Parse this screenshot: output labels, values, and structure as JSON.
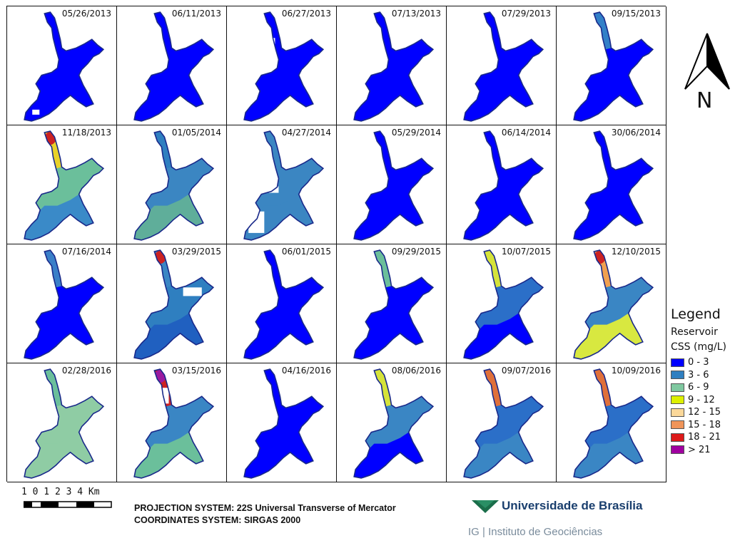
{
  "panels": [
    {
      "date": "05/26/2013",
      "colors": [
        "#0000ff",
        "#0000ff",
        "#0000ff"
      ],
      "holes": [
        [
          35,
          144,
          10,
          7
        ]
      ]
    },
    {
      "date": "06/11/2013",
      "colors": [
        "#0000ff",
        "#0000ff",
        "#0000ff"
      ],
      "holes": [
        [
          124,
          82,
          14,
          9
        ]
      ]
    },
    {
      "date": "06/27/2013",
      "colors": [
        "#0000ff",
        "#0000ff",
        "#0000ff"
      ],
      "holes": [
        [
          56,
          44,
          11,
          14
        ]
      ]
    },
    {
      "date": "07/13/2013",
      "colors": [
        "#0000ff",
        "#0000ff",
        "#0000ff"
      ],
      "holes": []
    },
    {
      "date": "07/29/2013",
      "colors": [
        "#0000ff",
        "#0000ff",
        "#0000ff"
      ],
      "holes": []
    },
    {
      "date": "09/15/2013",
      "colors": [
        "#3280c8",
        "#0000ff",
        "#0000ff"
      ],
      "holes": []
    },
    {
      "date": "11/18/2013",
      "colors": [
        "#e8d22a",
        "#6bbf9b",
        "#3a8ac8"
      ],
      "accent": "#cc2222",
      "holes": []
    },
    {
      "date": "01/05/2014",
      "colors": [
        "#2f7fc0",
        "#3b86c2",
        "#5fae9a"
      ],
      "holes": []
    },
    {
      "date": "04/27/2014",
      "colors": [
        "#3b86c2",
        "#3b86c2",
        "#3b86c2"
      ],
      "holes": [
        [
          58,
          85,
          14,
          9
        ],
        [
          30,
          120,
          22,
          30
        ]
      ]
    },
    {
      "date": "05/29/2014",
      "colors": [
        "#0000ff",
        "#0000ff",
        "#0000ff"
      ],
      "holes": []
    },
    {
      "date": "06/14/2014",
      "colors": [
        "#0000ff",
        "#0000ff",
        "#0000ff"
      ],
      "holes": []
    },
    {
      "date": "30/06/2014",
      "colors": [
        "#0000ff",
        "#0000ff",
        "#0000ff"
      ],
      "holes": []
    },
    {
      "date": "07/16/2014",
      "colors": [
        "#3a7fc8",
        "#0000ff",
        "#0000ff"
      ],
      "holes": []
    },
    {
      "date": "03/29/2015",
      "colors": [
        "#3a86c4",
        "#2f7fc0",
        "#2060c0"
      ],
      "accent": "#cc2222",
      "holes": [
        [
          92,
          60,
          26,
          12
        ]
      ]
    },
    {
      "date": "06/01/2015",
      "colors": [
        "#0000ff",
        "#0000ff",
        "#0000ff"
      ],
      "holes": []
    },
    {
      "date": "09/29/2015",
      "colors": [
        "#6bbf9b",
        "#0000ff",
        "#0000ff"
      ],
      "holes": []
    },
    {
      "date": "10/07/2015",
      "colors": [
        "#d5e33a",
        "#2b6fc8",
        "#0000ff"
      ],
      "holes": []
    },
    {
      "date": "12/10/2015",
      "colors": [
        "#f0a050",
        "#3a86c4",
        "#d8e840"
      ],
      "accent": "#cc2222",
      "holes": []
    },
    {
      "date": "02/28/2016",
      "colors": [
        "#6bbf9b",
        "#8fcca4",
        "#8fcca4"
      ],
      "holes": []
    },
    {
      "date": "03/15/2016",
      "colors": [
        "#cc2222",
        "#3a86c4",
        "#6bbf9b"
      ],
      "accent": "#9a1aa0",
      "holes": [
        [
          56,
          34,
          16,
          22
        ]
      ]
    },
    {
      "date": "04/16/2016",
      "colors": [
        "#0000ff",
        "#0000ff",
        "#0000ff"
      ],
      "holes": []
    },
    {
      "date": "08/06/2016",
      "colors": [
        "#d5e33a",
        "#3a86c4",
        "#0000ff"
      ],
      "holes": []
    },
    {
      "date": "09/07/2016",
      "colors": [
        "#e0703a",
        "#2b6fc8",
        "#3a86c4"
      ],
      "holes": []
    },
    {
      "date": "10/09/2016",
      "colors": [
        "#e0703a",
        "#2b6fc8",
        "#3a86c4"
      ],
      "holes": []
    }
  ],
  "north_arrow": {
    "letter": "N"
  },
  "legend": {
    "title": "Legend",
    "layer": "Reservoir",
    "field": "CSS (mg/L)",
    "classes": [
      {
        "label": "0 - 3",
        "color": "#0000ff"
      },
      {
        "label": "3 - 6",
        "color": "#2f7fc0"
      },
      {
        "label": "6 - 9",
        "color": "#7fc8a0"
      },
      {
        "label": "9 - 12",
        "color": "#ddf000"
      },
      {
        "label": "12 - 15",
        "color": "#fbd89a"
      },
      {
        "label": "15 - 18",
        "color": "#f0955a"
      },
      {
        "label": "18 - 21",
        "color": "#dd1a1a"
      },
      {
        "label": "> 21",
        "color": "#a000a0"
      }
    ]
  },
  "scale": {
    "labels": "1 0 1 2 3 4 Km"
  },
  "projection": {
    "line1": "PROJECTION SYSTEM: 22S Universal Transverse of Mercator",
    "line2": "COORDINATES SYSTEM: SIRGAS 2000"
  },
  "institution": {
    "name": "Universidade de Brasília",
    "institute": "IG | Instituto de Geociências",
    "logo_color": "#1a6e4a"
  }
}
